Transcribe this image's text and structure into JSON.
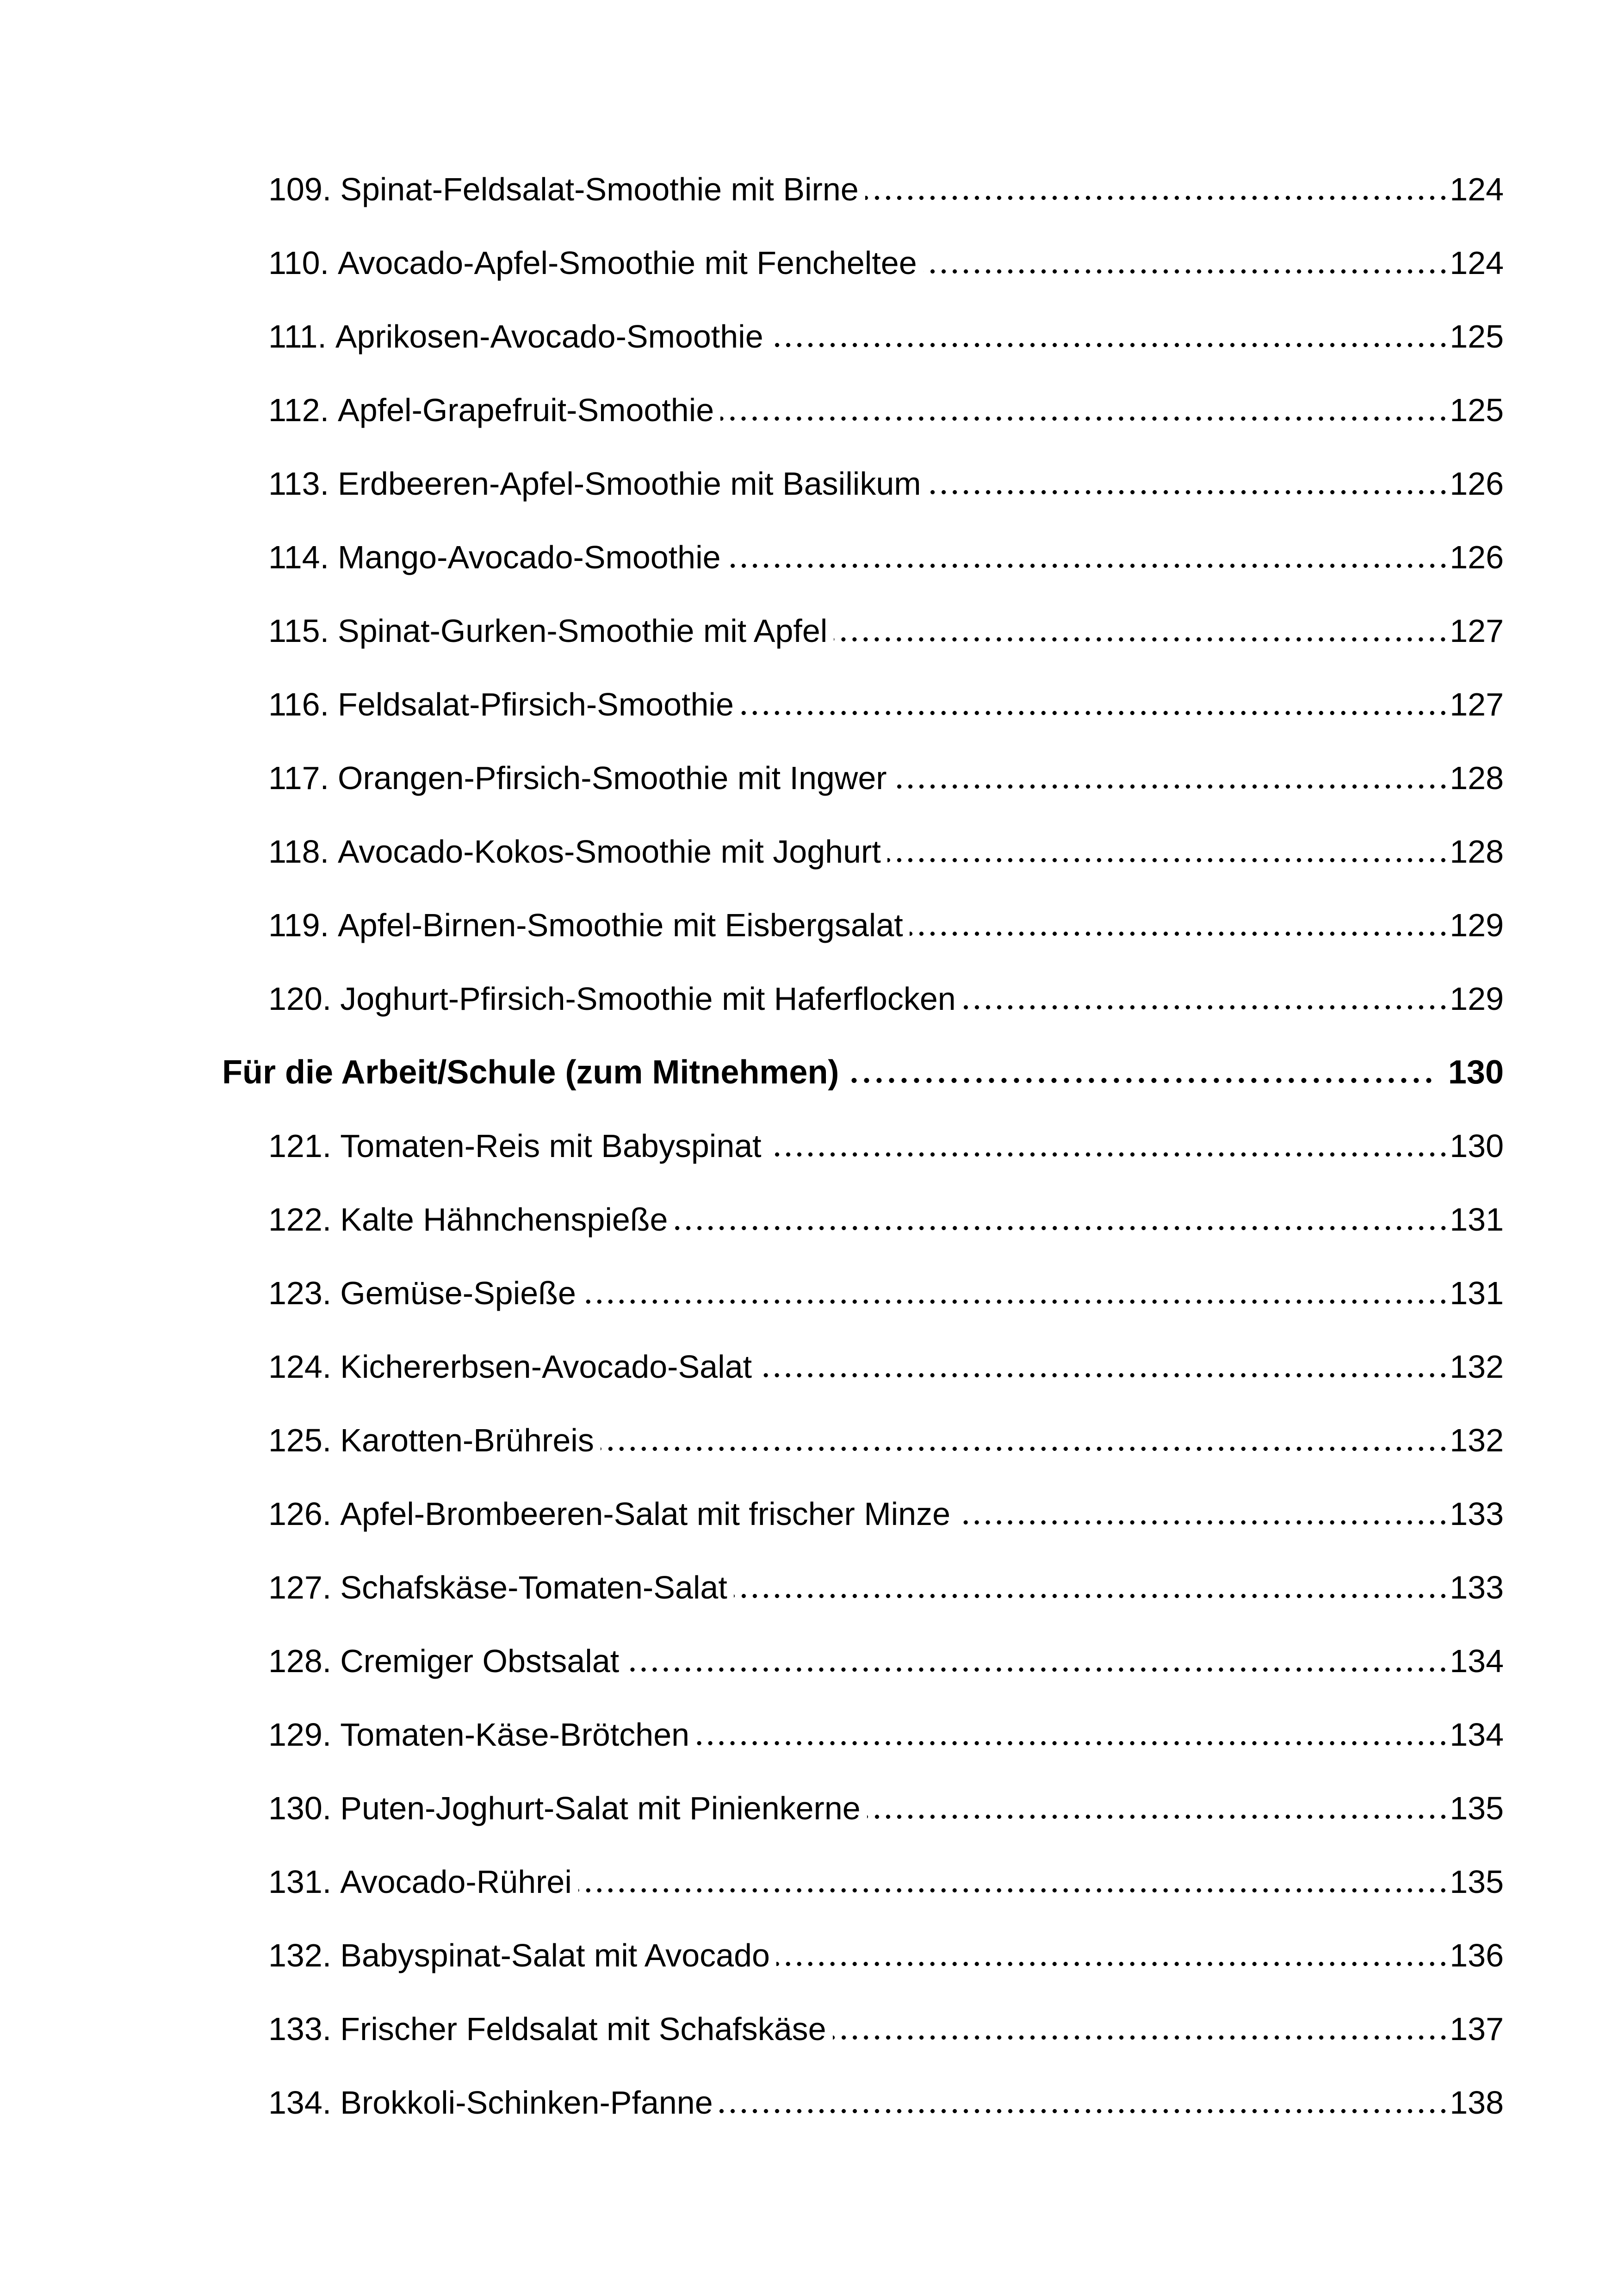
{
  "document": {
    "kind": "table-of-contents-page",
    "toc_items": [
      {
        "type": "entry",
        "number": "109.",
        "title": "Spinat-Feldsalat-Smoothie mit Birne",
        "page": "124"
      },
      {
        "type": "entry",
        "number": "110.",
        "title": "Avocado-Apfel-Smoothie mit Fencheltee",
        "page": "124"
      },
      {
        "type": "entry",
        "number": "111.",
        "title": "Aprikosen-Avocado-Smoothie",
        "page": "125"
      },
      {
        "type": "entry",
        "number": "112.",
        "title": "Apfel-Grapefruit-Smoothie",
        "page": "125"
      },
      {
        "type": "entry",
        "number": "113.",
        "title": "Erdbeeren-Apfel-Smoothie mit Basilikum",
        "page": "126"
      },
      {
        "type": "entry",
        "number": "114.",
        "title": "Mango-Avocado-Smoothie",
        "page": "126"
      },
      {
        "type": "entry",
        "number": "115.",
        "title": "Spinat-Gurken-Smoothie mit Apfel",
        "page": "127"
      },
      {
        "type": "entry",
        "number": "116.",
        "title": "Feldsalat-Pfirsich-Smoothie",
        "page": "127"
      },
      {
        "type": "entry",
        "number": "117.",
        "title": "Orangen-Pfirsich-Smoothie mit Ingwer",
        "page": "128"
      },
      {
        "type": "entry",
        "number": "118.",
        "title": "Avocado-Kokos-Smoothie mit Joghurt",
        "page": "128"
      },
      {
        "type": "entry",
        "number": "119.",
        "title": "Apfel-Birnen-Smoothie mit Eisbergsalat",
        "page": "129"
      },
      {
        "type": "entry",
        "number": "120.",
        "title": "Joghurt-Pfirsich-Smoothie mit Haferflocken",
        "page": "129"
      },
      {
        "type": "section",
        "title": "Für die Arbeit/Schule (zum Mitnehmen)",
        "page": "130"
      },
      {
        "type": "entry",
        "number": "121.",
        "title": "Tomaten-Reis mit Babyspinat",
        "page": "130"
      },
      {
        "type": "entry",
        "number": "122.",
        "title": "Kalte Hähnchenspieße",
        "page": "131"
      },
      {
        "type": "entry",
        "number": "123.",
        "title": "Gemüse-Spieße",
        "page": "131"
      },
      {
        "type": "entry",
        "number": "124.",
        "title": "Kichererbsen-Avocado-Salat",
        "page": "132"
      },
      {
        "type": "entry",
        "number": "125.",
        "title": "Karotten-Brühreis",
        "page": "132"
      },
      {
        "type": "entry",
        "number": "126.",
        "title": "Apfel-Brombeeren-Salat mit frischer Minze",
        "page": "133"
      },
      {
        "type": "entry",
        "number": "127.",
        "title": "Schafskäse-Tomaten-Salat",
        "page": "133"
      },
      {
        "type": "entry",
        "number": "128.",
        "title": "Cremiger Obstsalat",
        "page": "134"
      },
      {
        "type": "entry",
        "number": "129.",
        "title": "Tomaten-Käse-Brötchen",
        "page": "134"
      },
      {
        "type": "entry",
        "number": "130.",
        "title": "Puten-Joghurt-Salat mit Pinienkerne",
        "page": "135"
      },
      {
        "type": "entry",
        "number": "131.",
        "title": "Avocado-Rührei",
        "page": "135"
      },
      {
        "type": "entry",
        "number": "132.",
        "title": "Babyspinat-Salat mit Avocado",
        "page": "136"
      },
      {
        "type": "entry",
        "number": "133.",
        "title": "Frischer Feldsalat mit Schafskäse",
        "page": "137"
      },
      {
        "type": "entry",
        "number": "134.",
        "title": "Brokkoli-Schinken-Pfanne",
        "page": "138"
      }
    ],
    "text_color": "#000000",
    "background_color": "#ffffff"
  }
}
